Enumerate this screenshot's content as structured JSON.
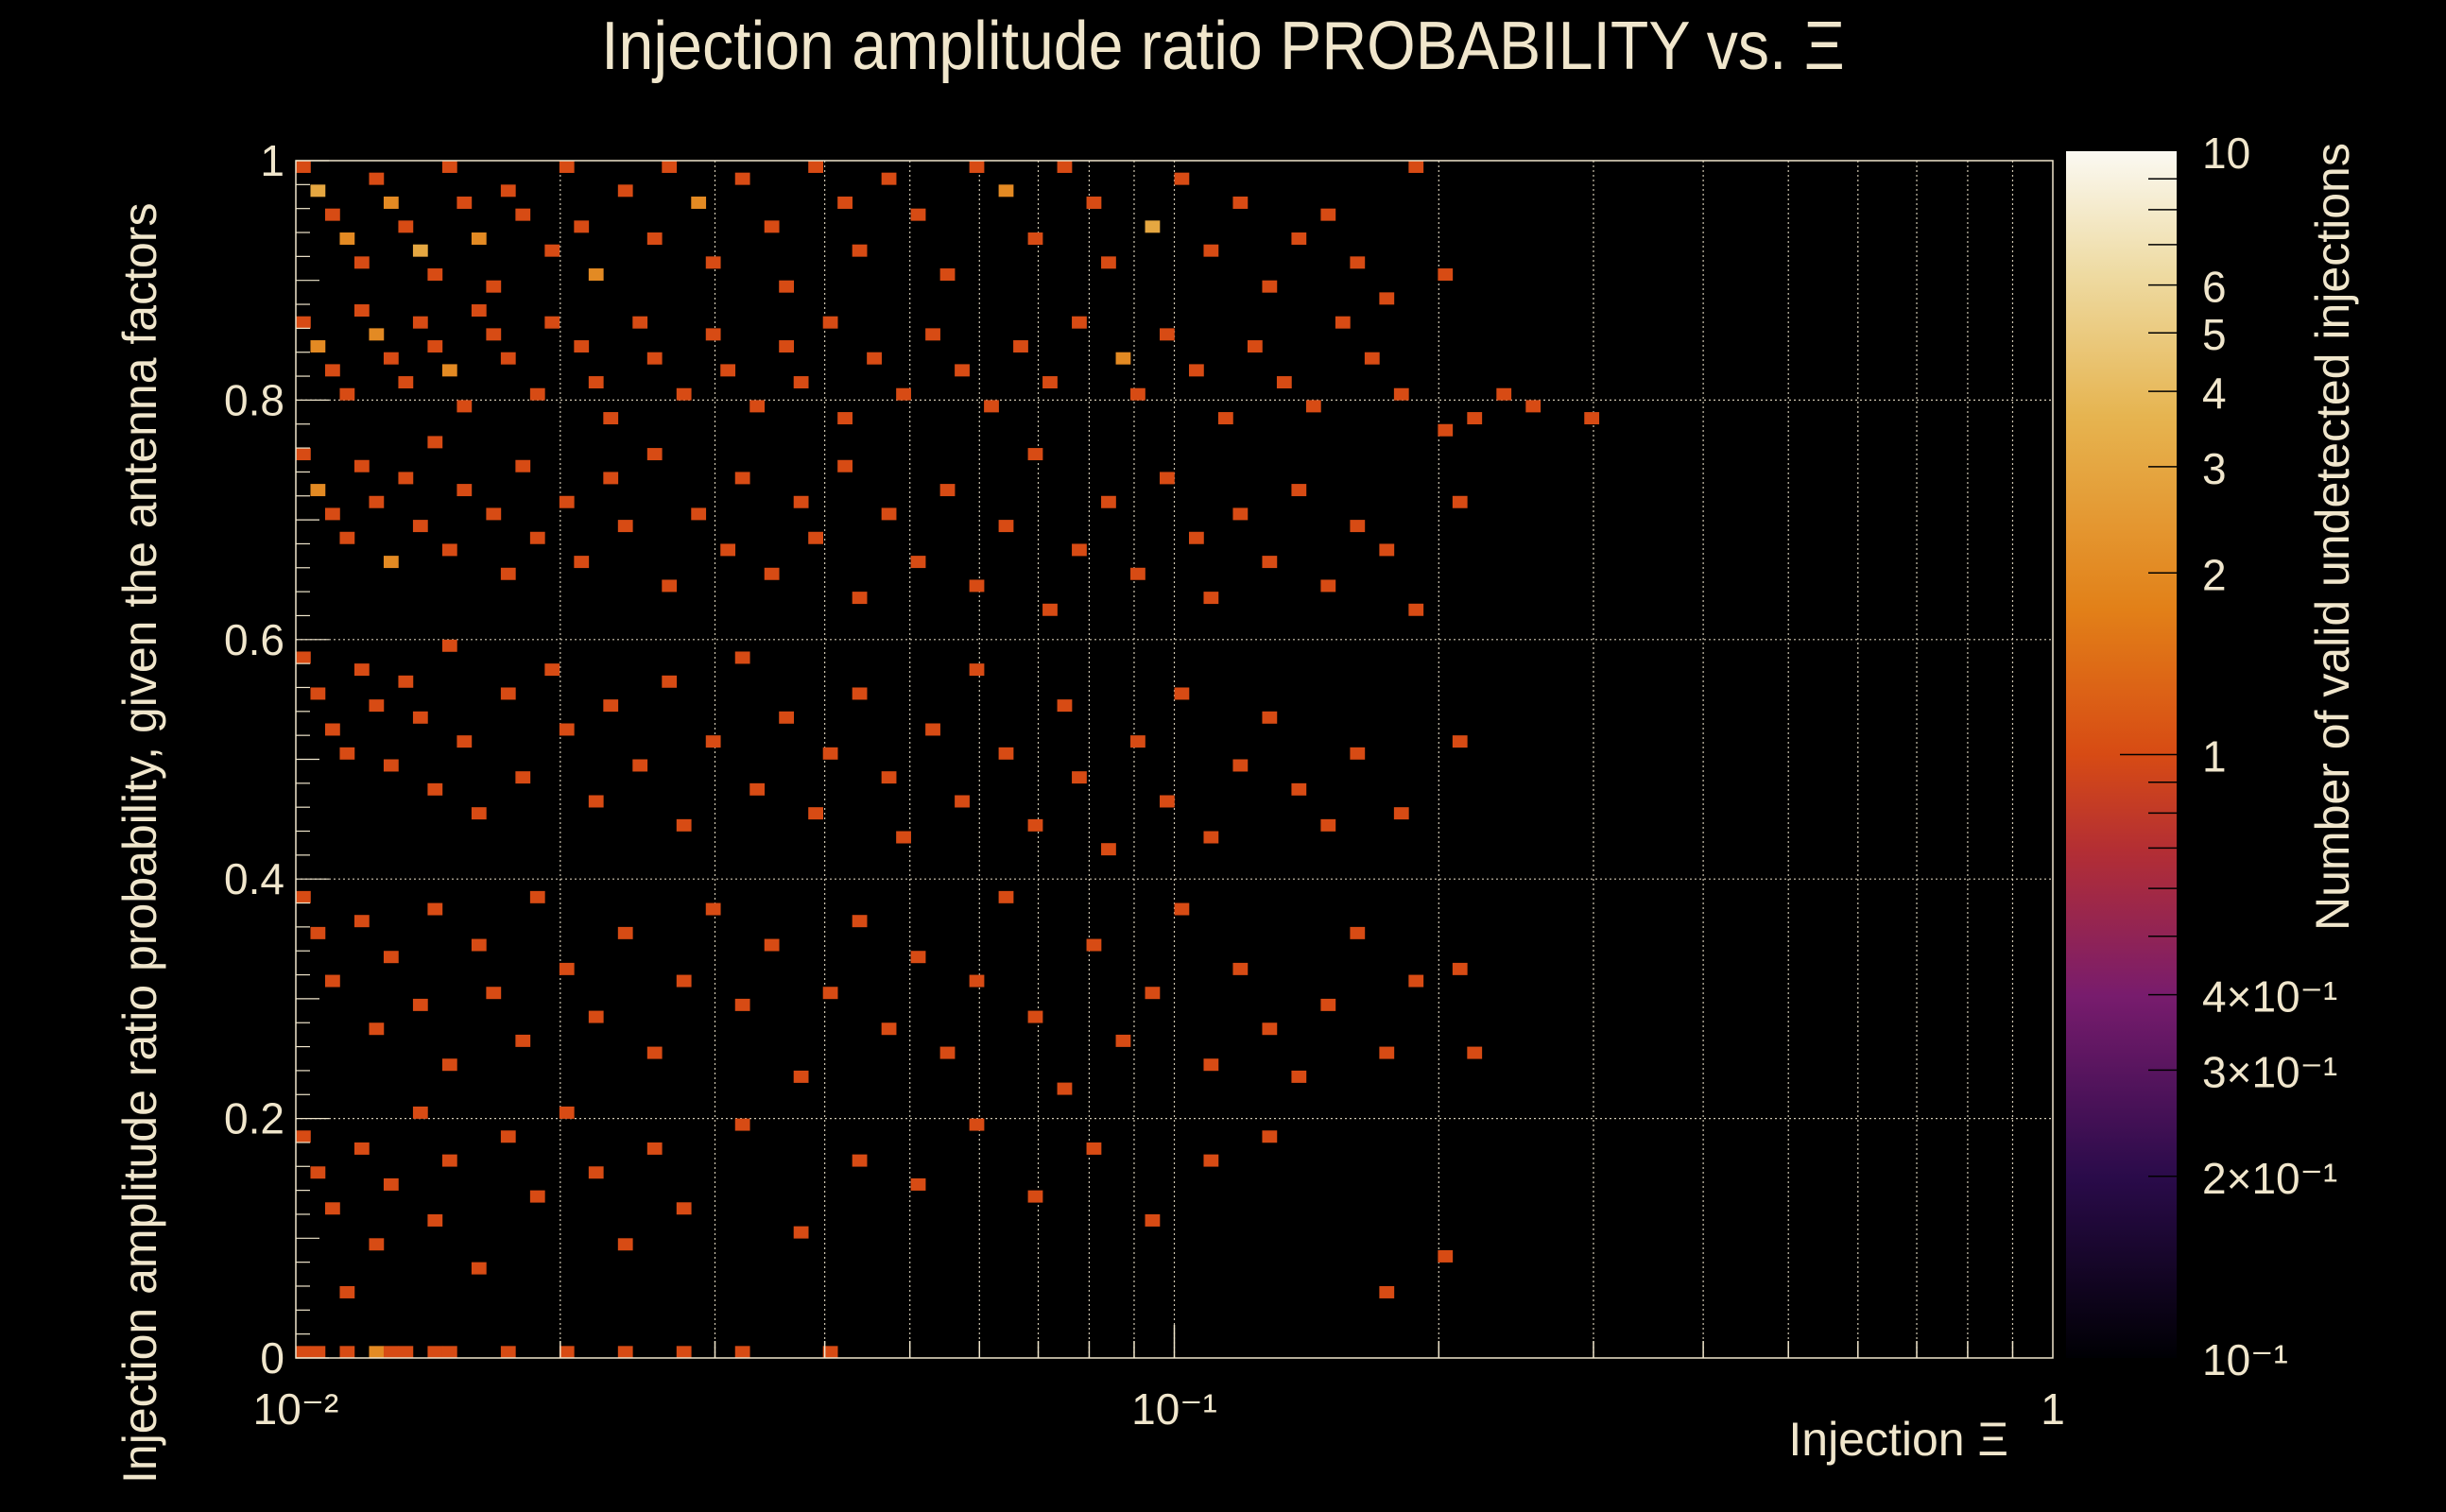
{
  "chart_data": {
    "type": "heatmap",
    "title": "Injection amplitude ratio PROBABILITY vs. Ξ",
    "xlabel": "Injection Ξ",
    "ylabel": "Injection amplitude ratio probability, given the antenna factors",
    "zlabel": "Number of valid undetected injections",
    "xscale": "log",
    "xlim": [
      0.01,
      1
    ],
    "ylim": [
      0,
      1
    ],
    "zscale": "log",
    "zlim": [
      0.1,
      10
    ],
    "grid": true,
    "x_bins": 120,
    "y_bins": 100,
    "x_tick_labels": [
      "10⁻²",
      "10⁻¹",
      "1"
    ],
    "y_tick_labels": [
      "0",
      "0.2",
      "0.4",
      "0.6",
      "0.8",
      "1"
    ],
    "z_tick_labels": [
      "10",
      "6",
      "5",
      "4",
      "3",
      "2",
      "1",
      "4×10⁻¹",
      "3×10⁻¹",
      "2×10⁻¹",
      "10⁻¹"
    ],
    "cells_note": "[x_bin, y_bin, count]",
    "cells": [
      [
        0,
        99,
        1
      ],
      [
        1,
        97,
        3
      ],
      [
        2,
        95,
        1
      ],
      [
        3,
        93,
        2
      ],
      [
        4,
        91,
        1
      ],
      [
        5,
        98,
        1
      ],
      [
        6,
        96,
        2
      ],
      [
        7,
        94,
        1
      ],
      [
        8,
        92,
        3
      ],
      [
        9,
        90,
        1
      ],
      [
        10,
        99,
        1
      ],
      [
        11,
        96,
        1
      ],
      [
        12,
        93,
        2
      ],
      [
        13,
        89,
        1
      ],
      [
        14,
        97,
        1
      ],
      [
        15,
        95,
        1
      ],
      [
        17,
        92,
        1
      ],
      [
        18,
        99,
        1
      ],
      [
        19,
        94,
        1
      ],
      [
        20,
        90,
        2
      ],
      [
        22,
        97,
        1
      ],
      [
        24,
        93,
        1
      ],
      [
        25,
        99,
        1
      ],
      [
        27,
        96,
        2
      ],
      [
        28,
        91,
        1
      ],
      [
        30,
        98,
        1
      ],
      [
        32,
        94,
        1
      ],
      [
        33,
        89,
        1
      ],
      [
        35,
        99,
        1
      ],
      [
        37,
        96,
        1
      ],
      [
        38,
        92,
        1
      ],
      [
        40,
        98,
        1
      ],
      [
        42,
        95,
        1
      ],
      [
        44,
        90,
        1
      ],
      [
        46,
        99,
        1
      ],
      [
        48,
        97,
        2
      ],
      [
        50,
        93,
        1
      ],
      [
        52,
        99,
        1
      ],
      [
        54,
        96,
        1
      ],
      [
        55,
        91,
        1
      ],
      [
        58,
        94,
        3
      ],
      [
        60,
        98,
        1
      ],
      [
        62,
        92,
        1
      ],
      [
        64,
        96,
        1
      ],
      [
        66,
        89,
        1
      ],
      [
        68,
        93,
        1
      ],
      [
        70,
        95,
        1
      ],
      [
        72,
        91,
        1
      ],
      [
        74,
        88,
        1
      ],
      [
        76,
        99,
        1
      ],
      [
        78,
        90,
        1
      ],
      [
        0,
        86,
        1
      ],
      [
        1,
        84,
        2
      ],
      [
        2,
        82,
        1
      ],
      [
        3,
        80,
        1
      ],
      [
        4,
        87,
        1
      ],
      [
        5,
        85,
        2
      ],
      [
        6,
        83,
        1
      ],
      [
        7,
        81,
        1
      ],
      [
        8,
        86,
        1
      ],
      [
        9,
        84,
        1
      ],
      [
        10,
        82,
        2
      ],
      [
        11,
        79,
        1
      ],
      [
        12,
        87,
        1
      ],
      [
        13,
        85,
        1
      ],
      [
        14,
        83,
        1
      ],
      [
        16,
        80,
        1
      ],
      [
        17,
        86,
        1
      ],
      [
        19,
        84,
        1
      ],
      [
        20,
        81,
        1
      ],
      [
        21,
        78,
        1
      ],
      [
        23,
        86,
        1
      ],
      [
        24,
        83,
        1
      ],
      [
        26,
        80,
        1
      ],
      [
        28,
        85,
        1
      ],
      [
        29,
        82,
        1
      ],
      [
        31,
        79,
        1
      ],
      [
        33,
        84,
        1
      ],
      [
        34,
        81,
        1
      ],
      [
        36,
        86,
        1
      ],
      [
        37,
        78,
        1
      ],
      [
        39,
        83,
        1
      ],
      [
        41,
        80,
        1
      ],
      [
        43,
        85,
        1
      ],
      [
        45,
        82,
        1
      ],
      [
        47,
        79,
        1
      ],
      [
        49,
        84,
        1
      ],
      [
        51,
        81,
        1
      ],
      [
        53,
        86,
        1
      ],
      [
        56,
        83,
        2
      ],
      [
        57,
        80,
        1
      ],
      [
        59,
        85,
        1
      ],
      [
        61,
        82,
        1
      ],
      [
        63,
        78,
        1
      ],
      [
        65,
        84,
        1
      ],
      [
        67,
        81,
        1
      ],
      [
        69,
        79,
        1
      ],
      [
        71,
        86,
        1
      ],
      [
        73,
        83,
        1
      ],
      [
        75,
        80,
        1
      ],
      [
        78,
        77,
        1
      ],
      [
        80,
        78,
        1
      ],
      [
        82,
        80,
        1
      ],
      [
        84,
        79,
        1
      ],
      [
        88,
        78,
        1
      ],
      [
        0,
        75,
        1
      ],
      [
        1,
        72,
        2
      ],
      [
        2,
        70,
        1
      ],
      [
        3,
        68,
        1
      ],
      [
        4,
        74,
        1
      ],
      [
        5,
        71,
        1
      ],
      [
        6,
        66,
        2
      ],
      [
        7,
        73,
        1
      ],
      [
        8,
        69,
        1
      ],
      [
        9,
        76,
        1
      ],
      [
        10,
        67,
        1
      ],
      [
        11,
        72,
        1
      ],
      [
        13,
        70,
        1
      ],
      [
        14,
        65,
        1
      ],
      [
        15,
        74,
        1
      ],
      [
        16,
        68,
        1
      ],
      [
        18,
        71,
        1
      ],
      [
        19,
        66,
        1
      ],
      [
        21,
        73,
        1
      ],
      [
        22,
        69,
        1
      ],
      [
        24,
        75,
        1
      ],
      [
        25,
        64,
        1
      ],
      [
        27,
        70,
        1
      ],
      [
        29,
        67,
        1
      ],
      [
        30,
        73,
        1
      ],
      [
        32,
        65,
        1
      ],
      [
        34,
        71,
        1
      ],
      [
        35,
        68,
        1
      ],
      [
        37,
        74,
        1
      ],
      [
        38,
        63,
        1
      ],
      [
        40,
        70,
        1
      ],
      [
        42,
        66,
        1
      ],
      [
        44,
        72,
        1
      ],
      [
        46,
        64,
        1
      ],
      [
        48,
        69,
        1
      ],
      [
        50,
        75,
        1
      ],
      [
        51,
        62,
        1
      ],
      [
        53,
        67,
        1
      ],
      [
        55,
        71,
        1
      ],
      [
        57,
        65,
        1
      ],
      [
        59,
        73,
        1
      ],
      [
        61,
        68,
        1
      ],
      [
        62,
        63,
        1
      ],
      [
        64,
        70,
        1
      ],
      [
        66,
        66,
        1
      ],
      [
        68,
        72,
        1
      ],
      [
        70,
        64,
        1
      ],
      [
        72,
        69,
        1
      ],
      [
        74,
        67,
        1
      ],
      [
        76,
        62,
        1
      ],
      [
        79,
        71,
        1
      ],
      [
        0,
        58,
        1
      ],
      [
        1,
        55,
        1
      ],
      [
        2,
        52,
        1
      ],
      [
        3,
        50,
        1
      ],
      [
        4,
        57,
        1
      ],
      [
        5,
        54,
        1
      ],
      [
        6,
        49,
        1
      ],
      [
        7,
        56,
        1
      ],
      [
        8,
        53,
        1
      ],
      [
        9,
        47,
        1
      ],
      [
        10,
        59,
        1
      ],
      [
        11,
        51,
        1
      ],
      [
        12,
        45,
        1
      ],
      [
        14,
        55,
        1
      ],
      [
        15,
        48,
        1
      ],
      [
        17,
        57,
        1
      ],
      [
        18,
        52,
        1
      ],
      [
        20,
        46,
        1
      ],
      [
        21,
        54,
        1
      ],
      [
        23,
        49,
        1
      ],
      [
        25,
        56,
        1
      ],
      [
        26,
        44,
        1
      ],
      [
        28,
        51,
        1
      ],
      [
        30,
        58,
        1
      ],
      [
        31,
        47,
        1
      ],
      [
        33,
        53,
        1
      ],
      [
        35,
        45,
        1
      ],
      [
        36,
        50,
        1
      ],
      [
        38,
        55,
        1
      ],
      [
        40,
        48,
        1
      ],
      [
        41,
        43,
        1
      ],
      [
        43,
        52,
        1
      ],
      [
        45,
        46,
        1
      ],
      [
        46,
        57,
        1
      ],
      [
        48,
        50,
        1
      ],
      [
        50,
        44,
        1
      ],
      [
        52,
        54,
        1
      ],
      [
        53,
        48,
        1
      ],
      [
        55,
        42,
        1
      ],
      [
        57,
        51,
        1
      ],
      [
        59,
        46,
        1
      ],
      [
        60,
        55,
        1
      ],
      [
        62,
        43,
        1
      ],
      [
        64,
        49,
        1
      ],
      [
        66,
        53,
        1
      ],
      [
        68,
        47,
        1
      ],
      [
        70,
        44,
        1
      ],
      [
        72,
        50,
        1
      ],
      [
        75,
        45,
        1
      ],
      [
        79,
        51,
        1
      ],
      [
        0,
        38,
        1
      ],
      [
        1,
        35,
        1
      ],
      [
        2,
        31,
        1
      ],
      [
        4,
        36,
        1
      ],
      [
        5,
        27,
        1
      ],
      [
        6,
        33,
        1
      ],
      [
        8,
        29,
        1
      ],
      [
        9,
        37,
        1
      ],
      [
        10,
        24,
        1
      ],
      [
        12,
        34,
        1
      ],
      [
        13,
        30,
        1
      ],
      [
        15,
        26,
        1
      ],
      [
        16,
        38,
        1
      ],
      [
        18,
        32,
        1
      ],
      [
        20,
        28,
        1
      ],
      [
        22,
        35,
        1
      ],
      [
        24,
        25,
        1
      ],
      [
        26,
        31,
        1
      ],
      [
        28,
        37,
        1
      ],
      [
        30,
        29,
        1
      ],
      [
        32,
        34,
        1
      ],
      [
        34,
        23,
        1
      ],
      [
        36,
        30,
        1
      ],
      [
        38,
        36,
        1
      ],
      [
        40,
        27,
        1
      ],
      [
        42,
        33,
        1
      ],
      [
        44,
        25,
        1
      ],
      [
        46,
        31,
        1
      ],
      [
        48,
        38,
        1
      ],
      [
        50,
        28,
        1
      ],
      [
        52,
        22,
        1
      ],
      [
        54,
        34,
        1
      ],
      [
        56,
        26,
        1
      ],
      [
        58,
        30,
        1
      ],
      [
        60,
        37,
        1
      ],
      [
        62,
        24,
        1
      ],
      [
        64,
        32,
        1
      ],
      [
        66,
        27,
        1
      ],
      [
        68,
        23,
        1
      ],
      [
        70,
        29,
        1
      ],
      [
        72,
        35,
        1
      ],
      [
        74,
        25,
        1
      ],
      [
        76,
        31,
        1
      ],
      [
        79,
        32,
        1
      ],
      [
        80,
        25,
        1
      ],
      [
        0,
        18,
        1
      ],
      [
        1,
        15,
        1
      ],
      [
        2,
        12,
        1
      ],
      [
        3,
        5,
        1
      ],
      [
        4,
        17,
        1
      ],
      [
        5,
        9,
        1
      ],
      [
        6,
        14,
        1
      ],
      [
        8,
        20,
        1
      ],
      [
        9,
        11,
        1
      ],
      [
        10,
        16,
        1
      ],
      [
        12,
        7,
        1
      ],
      [
        14,
        18,
        1
      ],
      [
        16,
        13,
        1
      ],
      [
        18,
        20,
        1
      ],
      [
        20,
        15,
        1
      ],
      [
        22,
        9,
        1
      ],
      [
        24,
        17,
        1
      ],
      [
        26,
        12,
        1
      ],
      [
        30,
        19,
        1
      ],
      [
        34,
        10,
        1
      ],
      [
        38,
        16,
        1
      ],
      [
        42,
        14,
        1
      ],
      [
        46,
        19,
        1
      ],
      [
        50,
        13,
        1
      ],
      [
        54,
        17,
        1
      ],
      [
        58,
        11,
        1
      ],
      [
        62,
        16,
        1
      ],
      [
        66,
        18,
        1
      ],
      [
        74,
        5,
        1
      ],
      [
        78,
        8,
        1
      ],
      [
        0,
        0,
        1
      ],
      [
        1,
        0,
        1
      ],
      [
        3,
        0,
        1
      ],
      [
        5,
        0,
        2
      ],
      [
        6,
        0,
        1
      ],
      [
        7,
        0,
        1
      ],
      [
        9,
        0,
        1
      ],
      [
        10,
        0,
        1
      ],
      [
        14,
        0,
        1
      ],
      [
        18,
        0,
        1
      ],
      [
        22,
        0,
        1
      ],
      [
        26,
        0,
        1
      ],
      [
        30,
        0,
        1
      ],
      [
        36,
        0,
        1
      ]
    ]
  }
}
